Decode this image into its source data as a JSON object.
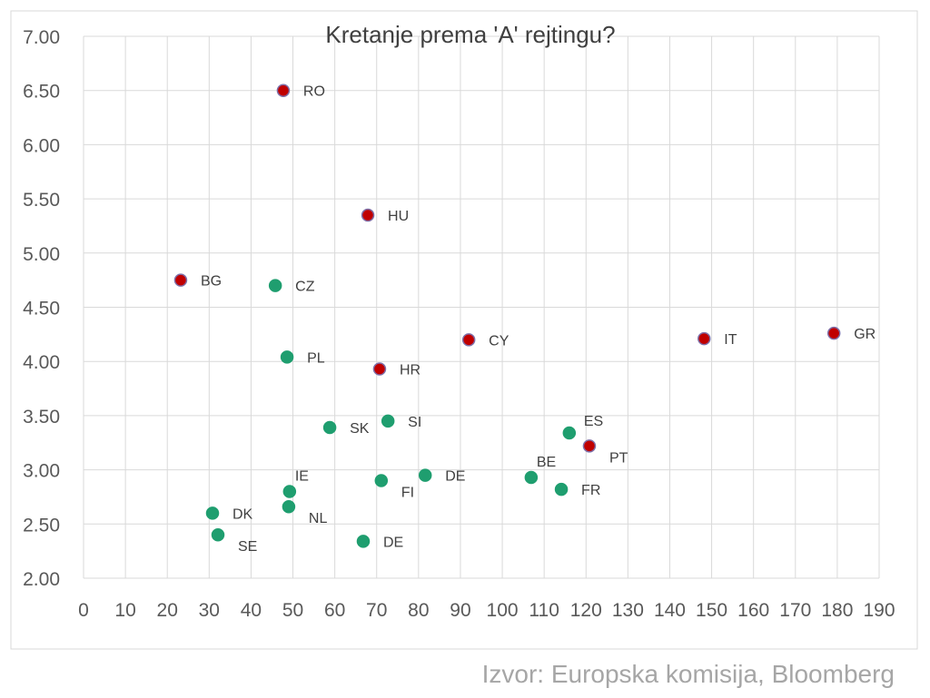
{
  "chart_data": {
    "type": "scatter",
    "title": "Kretanje prema 'A' rejtingu?",
    "xlabel": "",
    "ylabel": "",
    "xlim": [
      0,
      190
    ],
    "ylim": [
      2.0,
      7.0
    ],
    "x_ticks": [
      "0",
      "10",
      "20",
      "30",
      "40",
      "50",
      "60",
      "70",
      "80",
      "90",
      "100",
      "110",
      "120",
      "130",
      "140",
      "150",
      "160",
      "170",
      "180",
      "190"
    ],
    "y_ticks": [
      "2.00",
      "2.50",
      "3.00",
      "3.50",
      "4.00",
      "4.50",
      "5.00",
      "5.50",
      "6.00",
      "6.50",
      "7.00"
    ],
    "grid": true,
    "legend": "none",
    "colors": {
      "red": "#c00000",
      "red_border": "#7f6fa8",
      "green": "#1f9e6f"
    },
    "series": [
      {
        "color_key": "red",
        "points": [
          {
            "label": "RO",
            "x": 47.7,
            "y": 6.5,
            "label_pos": "right"
          },
          {
            "label": "HU",
            "x": 67.9,
            "y": 5.35,
            "label_pos": "right"
          },
          {
            "label": "BG",
            "x": 23.2,
            "y": 4.75,
            "label_pos": "right"
          },
          {
            "label": "CY",
            "x": 92.0,
            "y": 4.2,
            "label_pos": "right"
          },
          {
            "label": "IT",
            "x": 148.2,
            "y": 4.21,
            "label_pos": "right"
          },
          {
            "label": "GR",
            "x": 179.2,
            "y": 4.26,
            "label_pos": "right"
          },
          {
            "label": "HR",
            "x": 70.7,
            "y": 3.93,
            "label_pos": "right"
          },
          {
            "label": "PT",
            "x": 120.8,
            "y": 3.22,
            "label_pos": "below-right"
          }
        ]
      },
      {
        "color_key": "green",
        "points": [
          {
            "label": "CZ",
            "x": 45.8,
            "y": 4.7,
            "label_pos": "right"
          },
          {
            "label": "PL",
            "x": 48.6,
            "y": 4.04,
            "label_pos": "right"
          },
          {
            "label": "SK",
            "x": 58.8,
            "y": 3.39,
            "label_pos": "right"
          },
          {
            "label": "SI",
            "x": 72.7,
            "y": 3.45,
            "label_pos": "right"
          },
          {
            "label": "ES",
            "x": 116.0,
            "y": 3.34,
            "label_pos": "above-right"
          },
          {
            "label": "BE",
            "x": 106.9,
            "y": 2.93,
            "label_pos": "above"
          },
          {
            "label": "FR",
            "x": 114.1,
            "y": 2.82,
            "label_pos": "right"
          },
          {
            "label": "FI",
            "x": 71.1,
            "y": 2.9,
            "label_pos": "below-right"
          },
          {
            "label": "DE",
            "x": 81.6,
            "y": 2.95,
            "label_pos": "right"
          },
          {
            "label": "IE",
            "x": 49.2,
            "y": 2.8,
            "label_pos": "above"
          },
          {
            "label": "NL",
            "x": 49.0,
            "y": 2.66,
            "label_pos": "below-right"
          },
          {
            "label": "DK",
            "x": 30.8,
            "y": 2.6,
            "label_pos": "right"
          },
          {
            "label": "SE",
            "x": 32.1,
            "y": 2.4,
            "label_pos": "below-right"
          },
          {
            "label": "DE",
            "x": 66.8,
            "y": 2.34,
            "label_pos": "right"
          }
        ]
      }
    ]
  },
  "source": "Izvor: Europska komisija, Bloomberg"
}
